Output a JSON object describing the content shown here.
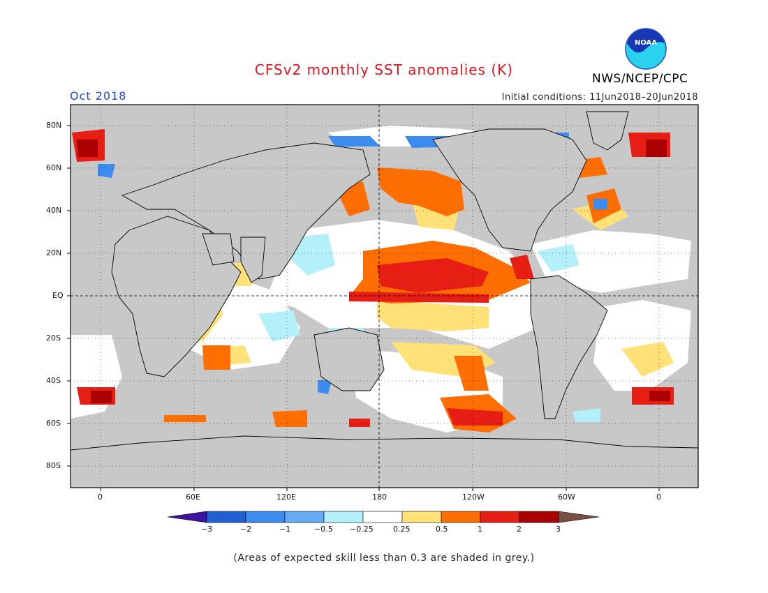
{
  "header": {
    "title": "CFSv2 monthly SST anomalies (K)",
    "month": "Oct 2018",
    "initial_conditions": "Initial conditions: 11Jun2018–20Jun2018",
    "agency": "NWS/NCEP/CPC",
    "logo_text": "NOAA",
    "logo_icon": "noaa-logo-icon"
  },
  "axes": {
    "lat_labels": [
      "80N",
      "60N",
      "40N",
      "20N",
      "EQ",
      "20S",
      "40S",
      "60S",
      "80S"
    ],
    "lon_labels": [
      "0",
      "60E",
      "120E",
      "180",
      "120W",
      "60W",
      "0"
    ]
  },
  "colorbar": {
    "labels": [
      "−3",
      "−2",
      "−1",
      "−0.5",
      "−0.25",
      "0.25",
      "0.5",
      "1",
      "2",
      "3"
    ],
    "colors": [
      "#3c14a0",
      "#1e5fd2",
      "#3c8cf0",
      "#64aaf5",
      "#b4f0fa",
      "#ffffff",
      "#ffe178",
      "#ff6e00",
      "#e61e14",
      "#aa0000",
      "#785046"
    ]
  },
  "footnote": "(Areas of expected skill less than 0.3 are shaded in grey.)",
  "colors": {
    "title": "#e0141e",
    "month": "#1e46e6",
    "grey_shading": "#c8c8c8"
  }
}
